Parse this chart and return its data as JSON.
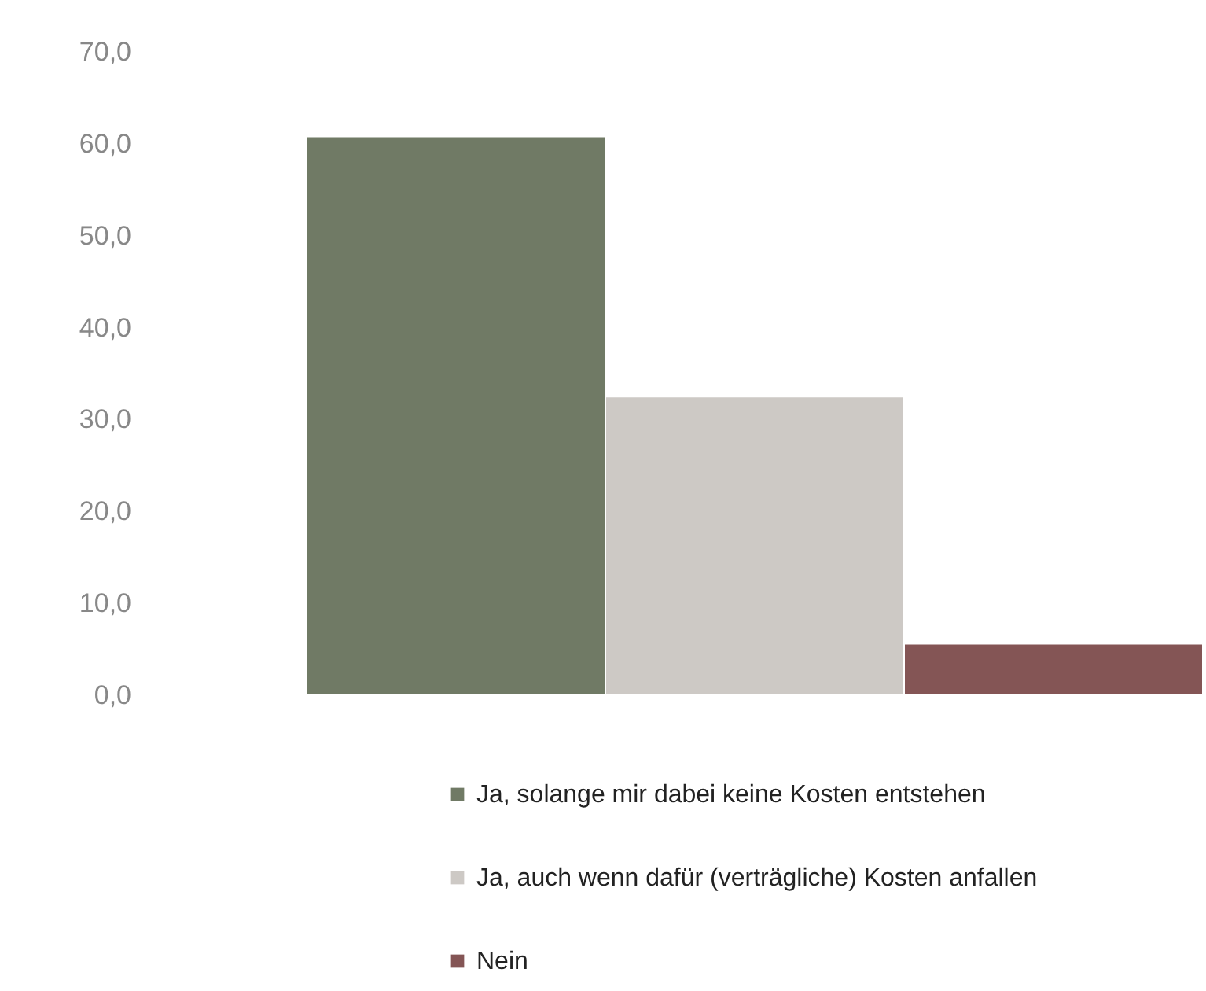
{
  "chart_data": {
    "type": "bar",
    "categories": [
      null
    ],
    "series": [
      {
        "name": "Ja, solange mir dabei keine Kosten entstehen",
        "color": "#707a65",
        "values": [
          60.8
        ]
      },
      {
        "name": "Ja, auch wenn dafür (verträgliche) Kosten anfallen",
        "color": "#cdc9c5",
        "values": [
          32.5
        ]
      },
      {
        "name": "Nein",
        "color": "#845555",
        "values": [
          5.6
        ]
      }
    ],
    "ylim": [
      0,
      70
    ],
    "yticks": [
      {
        "value": 0,
        "label": "0,0"
      },
      {
        "value": 10,
        "label": "10,0"
      },
      {
        "value": 20,
        "label": "20,0"
      },
      {
        "value": 30,
        "label": "30,0"
      },
      {
        "value": 40,
        "label": "40,0"
      },
      {
        "value": 50,
        "label": "50,0"
      },
      {
        "value": 60,
        "label": "60,0"
      },
      {
        "value": 70,
        "label": "70,0"
      }
    ],
    "grid": false,
    "legend": "bottom"
  }
}
